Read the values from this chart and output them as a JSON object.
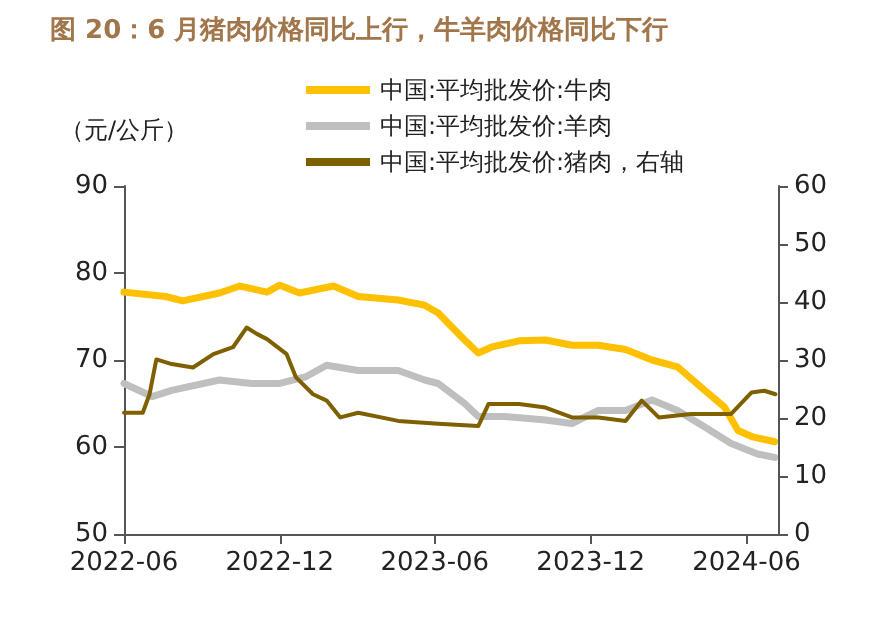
{
  "chart_data": {
    "type": "line",
    "title": "图 20：6 月猪肉价格同比上行，牛羊肉价格同比下行",
    "ylabel": "（元/公斤）",
    "xlim": [
      "2022-06-01",
      "2024-07-08"
    ],
    "xticks": [
      "2022-06",
      "2022-12",
      "2023-06",
      "2023-12",
      "2024-06"
    ],
    "ylim": [
      50,
      90
    ],
    "yticks": [
      50,
      60,
      70,
      80,
      90
    ],
    "y2lim": [
      0,
      60
    ],
    "y2ticks": [
      0,
      10,
      20,
      30,
      40,
      50,
      60
    ],
    "grid": false,
    "legend": "top",
    "marker": "none",
    "line_style": "solid",
    "series": [
      {
        "name": "中国:平均批发价:牛肉",
        "color": "#ffc000",
        "x": [
          "2022-06-01",
          "2022-07-20",
          "2022-08-09",
          "2022-09-21",
          "2022-10-15",
          "2022-11-16",
          "2022-12-01",
          "2022-12-24",
          "2023-02-02",
          "2023-03-03",
          "2023-04-19",
          "2023-05-20",
          "2023-06-05",
          "2023-06-21",
          "2023-07-06",
          "2023-07-22",
          "2023-08-07",
          "2023-09-08",
          "2023-10-09",
          "2023-11-09",
          "2023-12-10",
          "2024-01-11",
          "2024-02-11",
          "2024-03-12",
          "2024-04-13",
          "2024-05-06",
          "2024-05-22",
          "2024-06-07",
          "2024-07-04"
        ],
        "values": [
          77.8,
          77.3,
          76.8,
          77.7,
          78.5,
          77.8,
          78.6,
          77.7,
          78.5,
          77.3,
          76.9,
          76.3,
          75.4,
          73.8,
          72.3,
          70.8,
          71.5,
          72.2,
          72.3,
          71.7,
          71.7,
          71.2,
          70,
          69.2,
          66.5,
          64.6,
          61.9,
          61.2,
          60.6
        ]
      },
      {
        "name": "中国:平均批发价:羊肉",
        "color": "#bfbfbf",
        "x": [
          "2022-06-01",
          "2022-07-04",
          "2022-07-27",
          "2022-09-21",
          "2022-10-29",
          "2022-12-01",
          "2023-01-01",
          "2023-01-25",
          "2023-03-03",
          "2023-04-19",
          "2023-05-20",
          "2023-06-05",
          "2023-07-06",
          "2023-07-22",
          "2023-08-22",
          "2023-10-09",
          "2023-11-09",
          "2023-12-10",
          "2024-01-11",
          "2024-02-11",
          "2024-03-12",
          "2024-04-13",
          "2024-05-14",
          "2024-06-14",
          "2024-07-04"
        ],
        "values": [
          67.3,
          65.8,
          66.5,
          67.7,
          67.3,
          67.3,
          68.1,
          69.4,
          68.8,
          68.8,
          67.7,
          67.3,
          65,
          63.5,
          63.5,
          63.1,
          62.7,
          64.2,
          64.2,
          65.4,
          64.2,
          62.3,
          60.4,
          59.2,
          58.8
        ]
      },
      {
        "name": "中国:平均批发价:猪肉，右轴",
        "color": "#7f6000",
        "axis": "y2",
        "x": [
          "2022-06-01",
          "2022-06-23",
          "2022-07-01",
          "2022-07-09",
          "2022-07-27",
          "2022-08-21",
          "2022-09-14",
          "2022-10-07",
          "2022-10-23",
          "2022-11-04",
          "2022-11-16",
          "2022-12-09",
          "2022-12-20",
          "2023-01-09",
          "2023-01-25",
          "2023-02-10",
          "2023-03-03",
          "2023-04-19",
          "2023-06-05",
          "2023-07-22",
          "2023-08-03",
          "2023-09-08",
          "2023-10-09",
          "2023-11-09",
          "2023-12-10",
          "2024-01-11",
          "2024-01-30",
          "2024-02-19",
          "2024-03-28",
          "2024-05-14",
          "2024-06-07",
          "2024-06-22",
          "2024-07-05"
        ],
        "values": [
          20.9,
          20.9,
          24.1,
          30.1,
          29.3,
          28.7,
          31,
          32.2,
          35.6,
          34.5,
          33.6,
          31,
          27,
          24.1,
          23,
          20.1,
          20.9,
          19.5,
          19,
          18.6,
          22.4,
          22.4,
          21.8,
          20.1,
          20.1,
          19.5,
          23,
          20.1,
          20.7,
          20.7,
          24.4,
          24.7,
          24.1
        ]
      }
    ]
  }
}
